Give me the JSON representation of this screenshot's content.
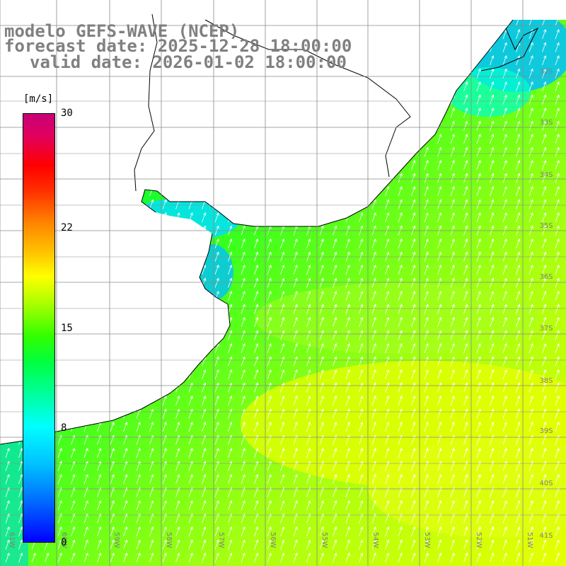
{
  "title": {
    "model": "modelo GEFS-WAVE (NCEP)",
    "forecast": "forecast date: 2025-12-28 18:00:00",
    "valid": "valid date: 2026-01-02 18:00:00"
  },
  "colorbar": {
    "unit": "[m/s]",
    "ticks": [
      {
        "label": "30",
        "value": 30
      },
      {
        "label": "22",
        "value": 22
      },
      {
        "label": "15",
        "value": 15
      },
      {
        "label": "8",
        "value": 8
      },
      {
        "label": "0",
        "value": 0
      }
    ]
  },
  "map": {
    "lat_labels": [
      "32S",
      "33S",
      "34S",
      "35S",
      "36S",
      "37S",
      "38S",
      "39S",
      "40S",
      "41S"
    ],
    "lon_labels": [
      "61W",
      "60W",
      "59W",
      "58W",
      "57W",
      "56W",
      "55W",
      "54W",
      "53W",
      "52W",
      "51W"
    ],
    "field": "wind speed",
    "land_color": "#ffffff",
    "coast_color": "#000000",
    "arrow_color": "#ffffff"
  }
}
